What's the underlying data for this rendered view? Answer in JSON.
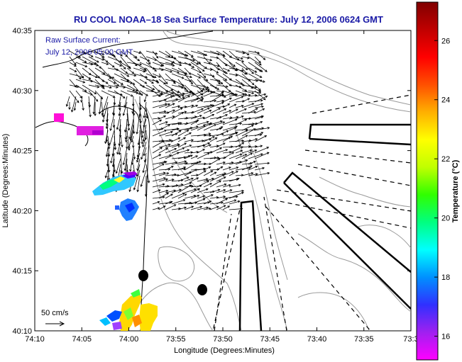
{
  "title": "RU COOL  NOAA–18  Sea Surface Temperature:  July 12, 2006 0624 GMT",
  "legend": {
    "line1": "Raw Surface Current:",
    "line2": "July 12, 2006 05:00 GMT",
    "scale_label": "50 cm/s"
  },
  "axes": {
    "xlabel": "Longitude (Degrees:Minutes)",
    "ylabel": "Latitude (Degrees:Minutes)",
    "x_ticks": [
      "74:10",
      "74:05",
      "74:00",
      "73:55",
      "73:50",
      "73:45",
      "73:40",
      "73:35",
      "73:3"
    ],
    "y_ticks": [
      "40:35",
      "40:30",
      "40:25",
      "40:20",
      "40:15",
      "40:10"
    ]
  },
  "colorbar": {
    "label": "Temperature (°C)",
    "ticks": [
      "26",
      "24",
      "22",
      "20",
      "18",
      "16"
    ],
    "range": [
      15.2,
      27.3
    ],
    "stops": [
      "#ff00ff",
      "#a020f0",
      "#3030ff",
      "#0090ff",
      "#00ffff",
      "#00ff80",
      "#30ff00",
      "#c0ff00",
      "#ffff00",
      "#ffb000",
      "#ff5000",
      "#ff0000",
      "#c00000",
      "#800000"
    ]
  },
  "colors": {
    "title": "#1a1aa6",
    "coast": "#000000",
    "bathymetry": "#999999",
    "shipping_lanes": "#000000",
    "markers": "#000000"
  }
}
